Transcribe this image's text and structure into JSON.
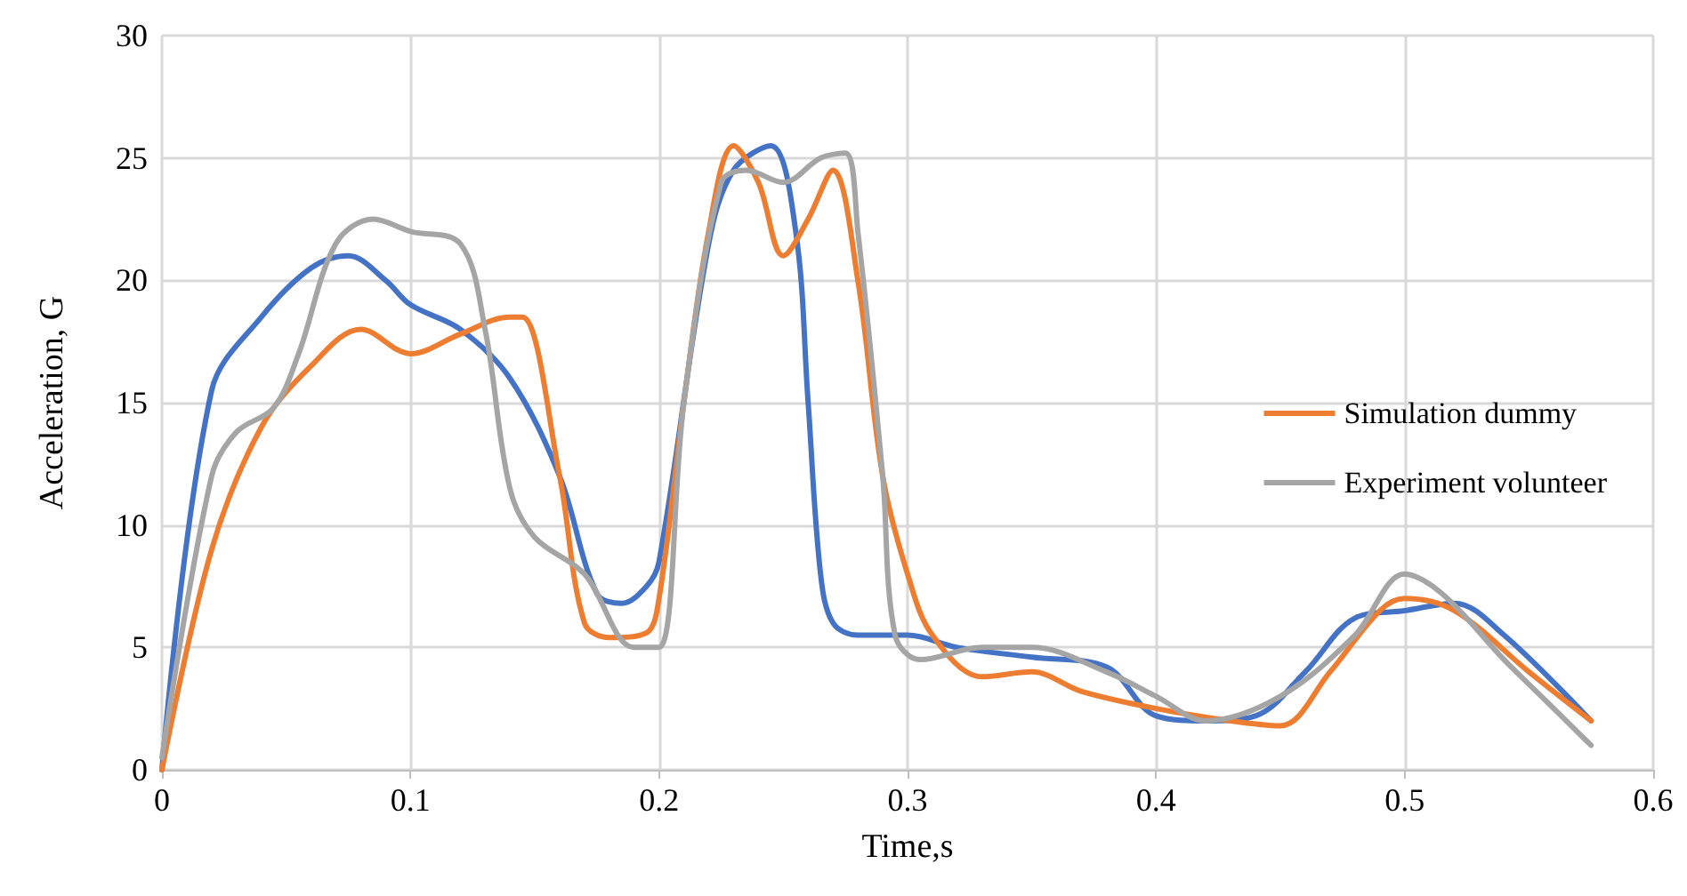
{
  "chart_data": {
    "type": "line",
    "xlabel": "Time,s",
    "ylabel": "Acceleration, G",
    "xlim": [
      0,
      0.6
    ],
    "xticks": [
      0,
      0.1,
      0.2,
      0.3,
      0.4,
      0.5,
      0.6
    ],
    "ylim": [
      0,
      30
    ],
    "yticks": [
      0,
      5,
      10,
      15,
      20,
      25,
      30
    ],
    "grid": true,
    "legend": "right",
    "marker": "none",
    "line_style": "solid",
    "series": [
      {
        "color": "#4472c4",
        "x": [
          0,
          0.02,
          0.04,
          0.06,
          0.075,
          0.09,
          0.1,
          0.12,
          0.14,
          0.16,
          0.175,
          0.185,
          0.195,
          0.2,
          0.22,
          0.23,
          0.245,
          0.255,
          0.26,
          0.265,
          0.27,
          0.28,
          0.3,
          0.32,
          0.35,
          0.38,
          0.4,
          0.42,
          0.44,
          0.46,
          0.48,
          0.5,
          0.52,
          0.54,
          0.575
        ],
        "values": [
          0,
          15.5,
          18.5,
          20.5,
          21,
          20,
          19,
          18,
          16,
          12,
          7.2,
          6.8,
          7.5,
          8.5,
          21.5,
          24.5,
          25.5,
          22,
          15,
          8,
          6,
          5.5,
          5.5,
          5,
          4.6,
          4.2,
          2.2,
          2,
          2.2,
          4,
          6.2,
          6.5,
          6.8,
          5.5,
          2
        ]
      },
      {
        "name": "Simulation dummy",
        "color": "#ed7d31",
        "x": [
          0,
          0.02,
          0.04,
          0.06,
          0.08,
          0.1,
          0.12,
          0.14,
          0.145,
          0.16,
          0.17,
          0.18,
          0.195,
          0.2,
          0.21,
          0.22,
          0.23,
          0.24,
          0.25,
          0.26,
          0.27,
          0.28,
          0.29,
          0.3,
          0.31,
          0.33,
          0.35,
          0.37,
          0.4,
          0.43,
          0.45,
          0.47,
          0.49,
          0.5,
          0.52,
          0.55,
          0.575
        ],
        "values": [
          0,
          9,
          14,
          16.5,
          18,
          17,
          17.8,
          18.5,
          18.5,
          12,
          6,
          5.4,
          5.6,
          7,
          15,
          22,
          25.5,
          24,
          21,
          22.5,
          24.5,
          20,
          12,
          8,
          5.5,
          3.8,
          4,
          3.2,
          2.5,
          2,
          1.8,
          4,
          6.5,
          7,
          6.5,
          4,
          2
        ]
      },
      {
        "name": "Experiment volunteer",
        "color": "#a5a5a5",
        "x": [
          0,
          0.02,
          0.03,
          0.045,
          0.055,
          0.07,
          0.085,
          0.1,
          0.12,
          0.13,
          0.14,
          0.15,
          0.17,
          0.19,
          0.2,
          0.21,
          0.225,
          0.235,
          0.25,
          0.265,
          0.275,
          0.28,
          0.29,
          0.295,
          0.305,
          0.33,
          0.35,
          0.38,
          0.4,
          0.42,
          0.45,
          0.48,
          0.5,
          0.515,
          0.54,
          0.555,
          0.575
        ],
        "values": [
          0.5,
          12,
          13.8,
          14.8,
          17,
          21.5,
          22.5,
          22,
          21.5,
          18,
          11.5,
          9.5,
          8,
          5,
          5,
          15,
          24,
          24.5,
          24,
          25,
          25.2,
          22,
          12,
          5.5,
          4.5,
          5,
          5,
          4,
          3,
          2,
          3,
          5.5,
          8,
          7.2,
          4.5,
          3,
          1
        ]
      }
    ]
  }
}
